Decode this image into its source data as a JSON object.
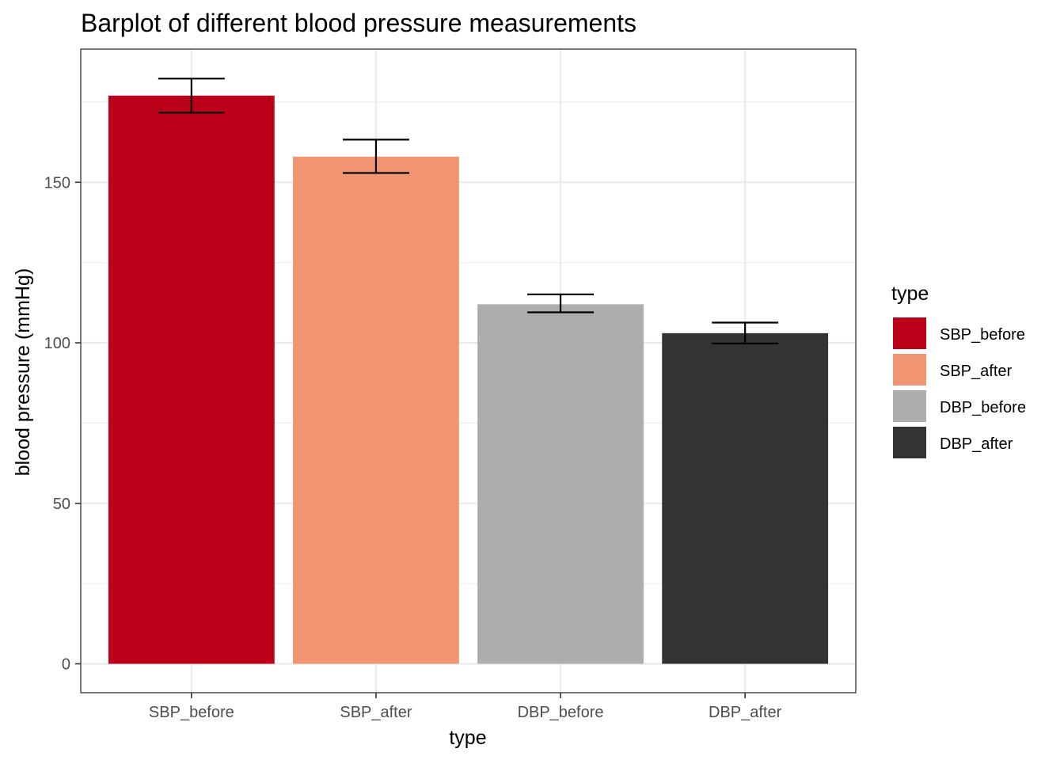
{
  "chart_data": {
    "type": "bar",
    "title": "Barplot of different blood pressure measurements",
    "xlabel": "type",
    "ylabel": "blood pressure (mmHg)",
    "categories": [
      "SBP_before",
      "SBP_after",
      "DBP_before",
      "DBP_after"
    ],
    "values": [
      177,
      158,
      112,
      103
    ],
    "error_bars": [
      {
        "low": 171.7,
        "high": 182.3
      },
      {
        "low": 152.9,
        "high": 163.3
      },
      {
        "low": 109.5,
        "high": 115.1
      },
      {
        "low": 99.8,
        "high": 106.3
      }
    ],
    "colors": [
      "#BD001A",
      "#F09472",
      "#ADADAD",
      "#333333"
    ],
    "ylim": [
      -9,
      191.5
    ],
    "yticks": [
      0,
      50,
      100,
      150
    ],
    "grid": true,
    "legend": {
      "title": "type",
      "position": "right",
      "entries": [
        "SBP_before",
        "SBP_after",
        "DBP_before",
        "DBP_after"
      ]
    }
  }
}
